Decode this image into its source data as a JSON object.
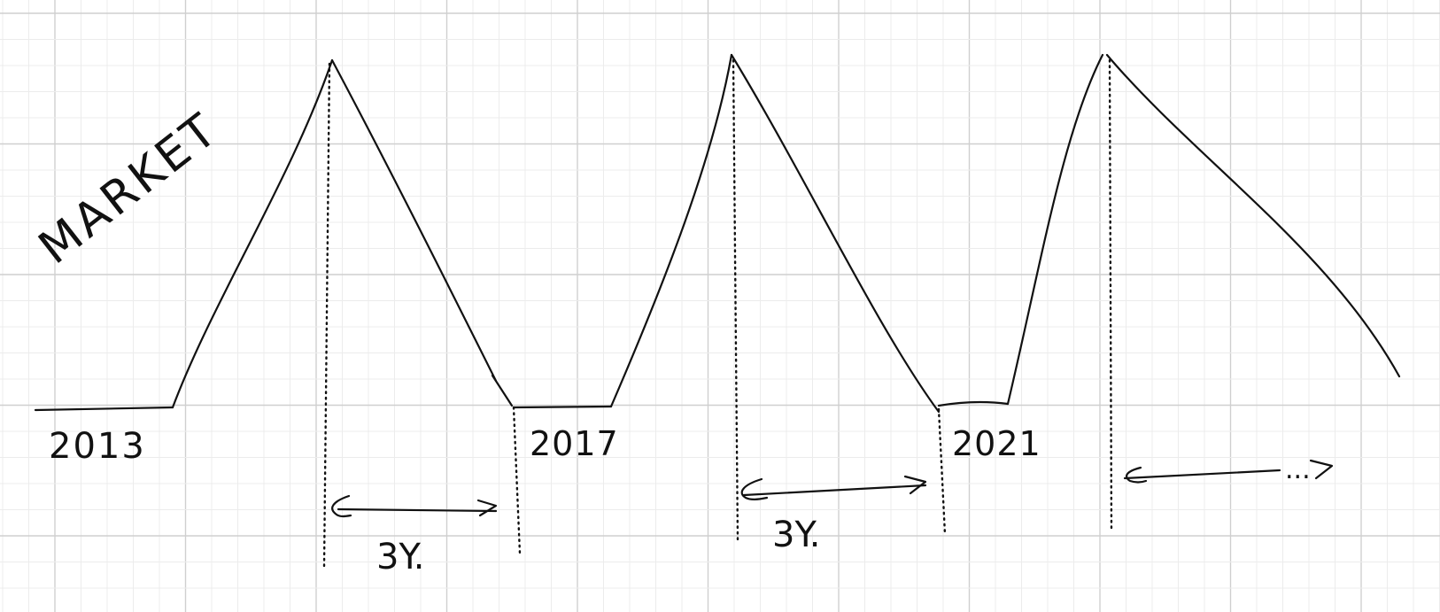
{
  "diagram": {
    "title": "MARKET",
    "colors": {
      "ink": "#111111",
      "grid_minor": "#ececec",
      "grid_major": "#cfcfcf",
      "background": "#ffffff"
    },
    "years": [
      {
        "label": "2013"
      },
      {
        "label": "2017"
      },
      {
        "label": "2021"
      }
    ],
    "durations": [
      {
        "label": "3Y."
      },
      {
        "label": "3Y."
      },
      {
        "label": "..."
      }
    ]
  }
}
